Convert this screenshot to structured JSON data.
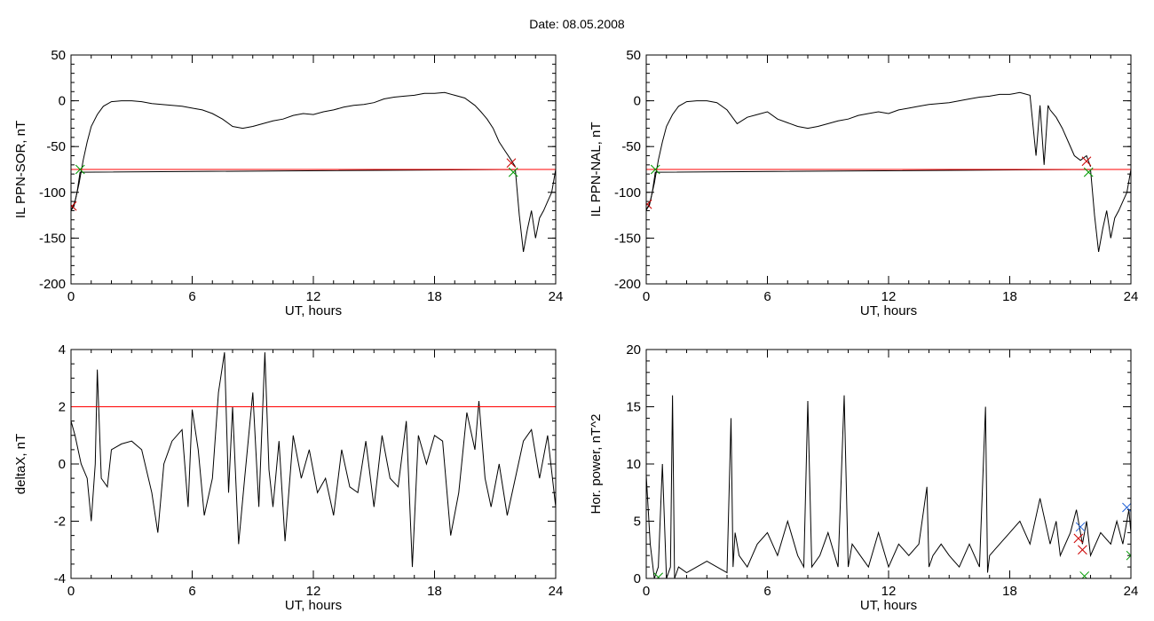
{
  "page": {
    "date_label": "Date:  08.05.2008"
  },
  "colors": {
    "trace": "#000000",
    "threshold": "#ff0000",
    "highlight": "#1f5fd6",
    "marker_start": "#009900",
    "marker_peak": "#cc0000",
    "marker_alt": "#1f5fd6"
  },
  "chart_data": [
    {
      "id": "il-sor",
      "type": "line",
      "xlabel": "UT, hours",
      "ylabel": "IL PPN-SOR, nT",
      "xlim": [
        0,
        24
      ],
      "ylim": [
        -200,
        50
      ],
      "xticks": [
        0,
        6,
        12,
        18,
        24
      ],
      "yticks": [
        -200,
        -150,
        -100,
        -50,
        0,
        50
      ],
      "x_minor": 1,
      "y_minor": 10,
      "threshold": -75,
      "series": [
        {
          "role": "main",
          "x": [
            0.0,
            0.2,
            0.4,
            0.6,
            0.8,
            1.0,
            1.3,
            1.6,
            2.0,
            2.5,
            3.0,
            3.5,
            4.0,
            4.5,
            5.0,
            5.5,
            6.0,
            6.5,
            7.0,
            7.5,
            8.0,
            8.5,
            9.0,
            9.5,
            10.0,
            10.5,
            11.0,
            11.5,
            12.0,
            12.5,
            13.0,
            13.5,
            14.0,
            14.5,
            15.0,
            15.5,
            16.0,
            16.5,
            17.0,
            17.5,
            18.0,
            18.5,
            19.0,
            19.5,
            20.0,
            20.3,
            20.6,
            20.9,
            21.2,
            21.5,
            21.8,
            22.0
          ],
          "y": [
            -120,
            -110,
            -90,
            -65,
            -45,
            -28,
            -15,
            -6,
            -1,
            0,
            0,
            -1,
            -3,
            -4,
            -5,
            -6,
            -8,
            -10,
            -14,
            -20,
            -28,
            -30,
            -28,
            -25,
            -22,
            -20,
            -16,
            -14,
            -15,
            -12,
            -10,
            -7,
            -5,
            -4,
            -2,
            2,
            4,
            5,
            6,
            8,
            8,
            9,
            6,
            3,
            -5,
            -12,
            -20,
            -30,
            -45,
            -55,
            -65,
            -72
          ]
        },
        {
          "role": "highlight",
          "x": [
            0.0,
            0.15,
            0.3,
            0.45,
            22.0,
            22.2,
            22.4,
            22.6,
            22.8,
            23.0,
            23.2,
            23.4,
            23.6,
            23.8,
            24.0
          ],
          "y": [
            -120,
            -115,
            -100,
            -78,
            -75,
            -125,
            -165,
            -140,
            -120,
            -150,
            -128,
            -120,
            -110,
            -100,
            -75
          ]
        }
      ],
      "markers": [
        {
          "shape": "x",
          "color": "marker_start",
          "x": 0.45,
          "y": -75
        },
        {
          "shape": "x",
          "color": "marker_peak",
          "x": 21.8,
          "y": -68
        },
        {
          "shape": "x",
          "color": "marker_peak",
          "x": 0.05,
          "y": -115
        },
        {
          "shape": "x",
          "color": "marker_start",
          "x": 21.9,
          "y": -78
        }
      ]
    },
    {
      "id": "il-nal",
      "type": "line",
      "xlabel": "UT, hours",
      "ylabel": "IL PPN-NAL, nT",
      "xlim": [
        0,
        24
      ],
      "ylim": [
        -200,
        50
      ],
      "xticks": [
        0,
        6,
        12,
        18,
        24
      ],
      "yticks": [
        -200,
        -150,
        -100,
        -50,
        0,
        50
      ],
      "x_minor": 1,
      "y_minor": 10,
      "threshold": -75,
      "series": [
        {
          "role": "main",
          "x": [
            0.0,
            0.2,
            0.4,
            0.6,
            0.8,
            1.0,
            1.3,
            1.6,
            2.0,
            2.5,
            3.0,
            3.5,
            4.0,
            4.5,
            5.0,
            5.5,
            6.0,
            6.5,
            7.0,
            7.5,
            8.0,
            8.5,
            9.0,
            9.5,
            10.0,
            10.5,
            11.0,
            11.5,
            12.0,
            12.5,
            13.0,
            13.5,
            14.0,
            14.5,
            15.0,
            15.5,
            16.0,
            16.5,
            17.0,
            17.5,
            18.0,
            18.5,
            19.0,
            19.3,
            19.5,
            19.7,
            19.9,
            20.0,
            20.3,
            20.6,
            20.9,
            21.2,
            21.5,
            21.8,
            22.0
          ],
          "y": [
            -120,
            -110,
            -90,
            -65,
            -45,
            -28,
            -15,
            -6,
            -1,
            0,
            0,
            -2,
            -10,
            -25,
            -18,
            -15,
            -12,
            -20,
            -24,
            -28,
            -30,
            -28,
            -25,
            -22,
            -20,
            -16,
            -14,
            -12,
            -14,
            -10,
            -8,
            -6,
            -4,
            -3,
            -2,
            0,
            2,
            4,
            5,
            7,
            7,
            9,
            6,
            -60,
            -5,
            -70,
            -5,
            -10,
            -18,
            -30,
            -45,
            -60,
            -65,
            -60,
            -72
          ]
        },
        {
          "role": "highlight",
          "x": [
            0.0,
            0.15,
            0.3,
            0.45,
            22.0,
            22.2,
            22.4,
            22.6,
            22.8,
            23.0,
            23.2,
            23.4,
            23.6,
            23.8,
            24.0
          ],
          "y": [
            -118,
            -115,
            -100,
            -78,
            -75,
            -125,
            -165,
            -140,
            -120,
            -150,
            -128,
            -120,
            -110,
            -100,
            -75
          ]
        }
      ],
      "markers": [
        {
          "shape": "x",
          "color": "marker_start",
          "x": 0.45,
          "y": -75
        },
        {
          "shape": "x",
          "color": "marker_peak",
          "x": 21.8,
          "y": -66
        },
        {
          "shape": "x",
          "color": "marker_peak",
          "x": 0.05,
          "y": -113
        },
        {
          "shape": "x",
          "color": "marker_start",
          "x": 21.9,
          "y": -78
        }
      ]
    },
    {
      "id": "deltax",
      "type": "line",
      "xlabel": "UT, hours",
      "ylabel": "deltaX, nT",
      "xlim": [
        0,
        24
      ],
      "ylim": [
        -4,
        4
      ],
      "xticks": [
        0,
        6,
        12,
        18,
        24
      ],
      "yticks": [
        -4,
        -2,
        0,
        2,
        4
      ],
      "x_minor": 1,
      "y_minor": 0.5,
      "threshold": 2,
      "series": [
        {
          "role": "main",
          "x": [
            0.0,
            0.2,
            0.5,
            0.8,
            1.0,
            1.2,
            1.3,
            1.5,
            1.8,
            2.0,
            2.5,
            3.0,
            3.5,
            4.0,
            4.3,
            4.6,
            5.0,
            5.5,
            5.8,
            6.0,
            6.3,
            6.6,
            7.0,
            7.3,
            7.6,
            7.8,
            8.0,
            8.3,
            8.6,
            9.0,
            9.3,
            9.6,
            9.8,
            10.0,
            10.3,
            10.6,
            11.0,
            11.4,
            11.8,
            12.2,
            12.6,
            13.0,
            13.4,
            13.8,
            14.2,
            14.6,
            15.0,
            15.4,
            15.8,
            16.2,
            16.6,
            16.9,
            17.2,
            17.6,
            18.0,
            18.4,
            18.8,
            19.2,
            19.6,
            20.0,
            20.2,
            20.5,
            20.8,
            21.2,
            21.6,
            22.0,
            22.4,
            22.8,
            23.2,
            23.6,
            24.0
          ],
          "y": [
            1.5,
            1.0,
            0.0,
            -0.5,
            -2.0,
            0.0,
            3.3,
            -0.5,
            -0.8,
            0.5,
            0.7,
            0.8,
            0.5,
            -1.0,
            -2.4,
            0.0,
            0.8,
            1.2,
            -1.5,
            1.9,
            0.5,
            -1.8,
            -0.5,
            2.5,
            3.9,
            -1.0,
            2.0,
            -2.8,
            -0.5,
            2.5,
            -1.5,
            3.9,
            -0.2,
            -1.5,
            0.8,
            -2.7,
            1.0,
            -0.5,
            0.5,
            -1.0,
            -0.5,
            -1.8,
            0.5,
            -0.8,
            -1.0,
            0.8,
            -1.5,
            1.0,
            -0.5,
            -0.8,
            1.5,
            -3.6,
            1.0,
            0.0,
            1.0,
            0.8,
            -2.5,
            -1.0,
            1.8,
            0.5,
            2.2,
            -0.5,
            -1.5,
            0.0,
            -1.8,
            -0.5,
            0.8,
            1.2,
            -0.5,
            1.0,
            -1.5
          ]
        }
      ],
      "markers": []
    },
    {
      "id": "hor-power",
      "type": "line",
      "xlabel": "UT, hours",
      "ylabel": "Hor. power, nT^2",
      "xlim": [
        0,
        24
      ],
      "ylim": [
        0,
        20
      ],
      "xticks": [
        0,
        6,
        12,
        18,
        24
      ],
      "yticks": [
        0,
        5,
        10,
        15,
        20
      ],
      "x_minor": 1,
      "y_minor": 1,
      "threshold": null,
      "series": [
        {
          "role": "main",
          "x": [
            0.0,
            0.2,
            0.4,
            0.6,
            0.8,
            1.0,
            1.2,
            1.3,
            1.4,
            1.6,
            2.0,
            2.5,
            3.0,
            3.5,
            4.0,
            4.2,
            4.3,
            4.4,
            4.6,
            5.0,
            5.5,
            6.0,
            6.5,
            7.0,
            7.5,
            7.8,
            8.0,
            8.2,
            8.6,
            9.0,
            9.5,
            9.8,
            10.0,
            10.2,
            10.6,
            11.0,
            11.5,
            12.0,
            12.5,
            13.0,
            13.5,
            13.9,
            14.0,
            14.2,
            14.6,
            15.0,
            15.5,
            16.0,
            16.5,
            16.8,
            16.9,
            17.0,
            17.5,
            18.0,
            18.5,
            19.0,
            19.5,
            20.0,
            20.3,
            20.5,
            21.0,
            21.3,
            21.6,
            21.8,
            22.0,
            22.5,
            23.0,
            23.3,
            23.6,
            23.9,
            24.0
          ],
          "y": [
            9,
            3,
            0,
            1,
            10,
            0,
            1,
            16,
            0,
            1,
            0.5,
            1,
            1.5,
            1,
            0.5,
            14,
            1,
            4,
            2,
            1,
            3,
            4,
            2,
            5,
            2,
            1,
            15.5,
            1,
            2,
            4,
            1,
            16,
            1,
            3,
            2,
            1,
            4,
            1,
            3,
            2,
            3,
            8,
            1,
            2,
            3,
            2,
            1,
            3,
            1,
            15,
            0.5,
            2,
            3,
            4,
            5,
            3,
            7,
            3,
            5,
            2,
            4,
            6,
            3,
            5,
            2,
            4,
            3,
            5,
            3,
            6,
            4
          ]
        },
        {
          "role": "highlight",
          "x": [],
          "y": []
        }
      ],
      "markers": [
        {
          "shape": "x",
          "color": "marker_alt",
          "x": 21.5,
          "y": 4.5
        },
        {
          "shape": "x",
          "color": "marker_peak",
          "x": 21.4,
          "y": 3.5
        },
        {
          "shape": "x",
          "color": "marker_peak",
          "x": 21.6,
          "y": 2.5
        },
        {
          "shape": "x",
          "color": "marker_alt",
          "x": 23.8,
          "y": 6.2
        },
        {
          "shape": "x",
          "color": "marker_start",
          "x": 0.6,
          "y": 0.1
        },
        {
          "shape": "x",
          "color": "marker_start",
          "x": 21.7,
          "y": 0.2
        },
        {
          "shape": "x",
          "color": "marker_start",
          "x": 24.0,
          "y": 2.0
        }
      ]
    }
  ]
}
